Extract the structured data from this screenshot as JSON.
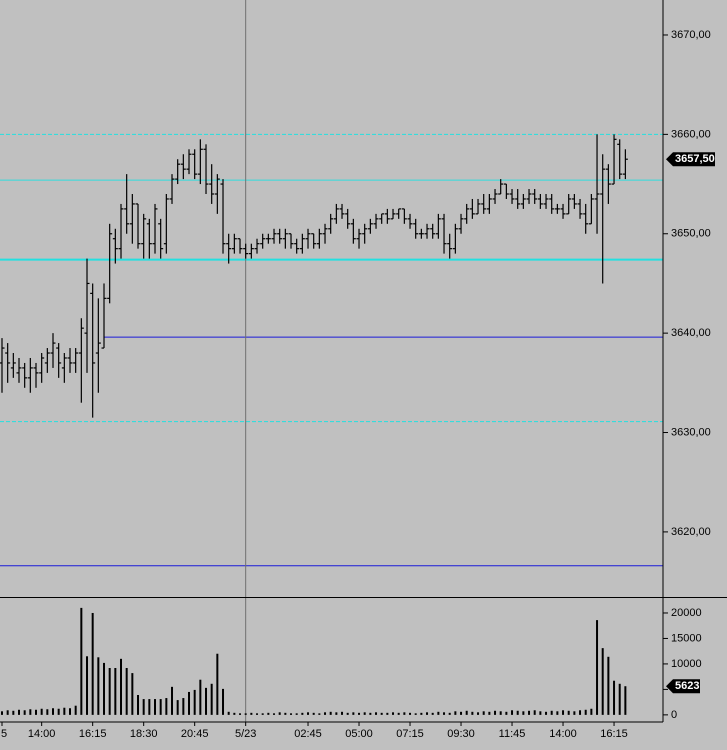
{
  "chart_data": [
    {
      "type": "ohlc",
      "categories": [
        "5",
        null,
        null,
        null,
        null,
        null,
        null,
        "14:00",
        null,
        null,
        null,
        null,
        null,
        null,
        null,
        null,
        "16:15",
        null,
        null,
        null,
        null,
        null,
        null,
        null,
        null,
        "18:30",
        null,
        null,
        null,
        null,
        null,
        null,
        null,
        null,
        "20:45",
        null,
        null,
        null,
        null,
        null,
        null,
        null,
        null,
        "5/23",
        null,
        null,
        null,
        null,
        null,
        null,
        null,
        null,
        null,
        null,
        "02:45",
        null,
        null,
        null,
        null,
        null,
        null,
        null,
        null,
        "05:00",
        null,
        null,
        null,
        null,
        null,
        null,
        null,
        null,
        "07:15",
        null,
        null,
        null,
        null,
        null,
        null,
        null,
        null,
        "09:30",
        null,
        null,
        null,
        null,
        null,
        null,
        null,
        null,
        "11:45",
        null,
        null,
        null,
        null,
        null,
        null,
        null,
        null,
        "14:00",
        null,
        null,
        null,
        null,
        null,
        null,
        null,
        null,
        "16:15",
        null,
        null
      ],
      "open": [
        3637,
        3638,
        3636.5,
        3636,
        3636.5,
        3635.5,
        3636.5,
        3636,
        3637,
        3638,
        3638.5,
        3636.5,
        3637.5,
        3637,
        3638,
        3640,
        3644,
        3638,
        3638.5,
        3643.5,
        3649.5,
        3648.5,
        3652.5,
        3651,
        3653,
        3649,
        3651,
        3649,
        3651,
        3649,
        3653.5,
        3655.5,
        3657,
        3656.5,
        3658,
        3656,
        3658.5,
        3655,
        3654,
        3655,
        3649,
        3648.5,
        3649.5,
        3648.5,
        3648,
        3648.5,
        3649,
        3649.5,
        3649.5,
        3650,
        3649.5,
        3650,
        3649,
        3648.5,
        3649.5,
        3650,
        3649,
        3650,
        3650.5,
        3651.5,
        3652.5,
        3652,
        3651,
        3649.5,
        3650,
        3650.5,
        3651,
        3651.5,
        3652,
        3651.5,
        3652,
        3652.5,
        3651.5,
        3651,
        3650,
        3650,
        3650.5,
        3650,
        3651.5,
        3649,
        3648.5,
        3650.5,
        3651.5,
        3652.5,
        3652,
        3653,
        3652.5,
        3653.5,
        3654,
        3655,
        3654,
        3653.5,
        3653,
        3653.5,
        3654,
        3653.5,
        3653,
        3653.5,
        3652.5,
        3652.5,
        3652,
        3653.5,
        3653,
        3652,
        3651,
        3653.5,
        3654,
        3656.5,
        3655,
        3659,
        3656
      ],
      "high": [
        3639.5,
        3639,
        3638,
        3637.5,
        3637,
        3637.5,
        3637,
        3638,
        3638.5,
        3640,
        3639,
        3638,
        3638.5,
        3638.5,
        3641.5,
        3647.5,
        3645,
        3643.5,
        3645,
        3651,
        3650.5,
        3653,
        3656,
        3654,
        3653,
        3652,
        3651.5,
        3653,
        3651.5,
        3654,
        3656,
        3657.5,
        3658,
        3658.5,
        3658.5,
        3659.5,
        3659,
        3657,
        3656,
        3655.5,
        3650,
        3650,
        3649.5,
        3649,
        3649,
        3649.5,
        3650,
        3650,
        3650.5,
        3650.5,
        3650.5,
        3650,
        3649.5,
        3650,
        3650.5,
        3650,
        3650.5,
        3651,
        3652,
        3653,
        3653,
        3652.5,
        3651.5,
        3650.5,
        3651,
        3651.5,
        3652,
        3652,
        3652.5,
        3652.5,
        3652.5,
        3652.5,
        3652,
        3651.5,
        3650.5,
        3651,
        3651,
        3652,
        3652,
        3650,
        3651,
        3652,
        3653,
        3653.5,
        3653.5,
        3654,
        3654,
        3654.5,
        3655.5,
        3655,
        3654.5,
        3654.5,
        3654,
        3654.5,
        3654.5,
        3654,
        3654,
        3654,
        3653,
        3653,
        3654,
        3654,
        3653.5,
        3653,
        3654,
        3660,
        3658,
        3657,
        3660,
        3659.5,
        3658.5
      ],
      "low": [
        3634,
        3635,
        3635.5,
        3635,
        3634.5,
        3634,
        3634.5,
        3635,
        3636,
        3636.5,
        3635.5,
        3635,
        3636,
        3636,
        3633,
        3636,
        3631.5,
        3634,
        3638.5,
        3643,
        3647,
        3647.5,
        3650,
        3649,
        3648.5,
        3647.5,
        3647.5,
        3648,
        3647.5,
        3648,
        3653,
        3655,
        3655.5,
        3656,
        3655.5,
        3655,
        3654,
        3653,
        3652,
        3648,
        3647,
        3648,
        3648,
        3647.5,
        3647.5,
        3648,
        3648.5,
        3649,
        3649,
        3649,
        3648.5,
        3648.5,
        3648,
        3648,
        3648.5,
        3648.5,
        3648.5,
        3649,
        3650,
        3651,
        3651.5,
        3650.5,
        3649,
        3648.5,
        3649,
        3650,
        3650.5,
        3651,
        3651,
        3651.5,
        3651.5,
        3651,
        3650.5,
        3649.5,
        3649.5,
        3649.5,
        3649.5,
        3649.5,
        3648,
        3647.5,
        3648,
        3650,
        3651,
        3651.5,
        3652,
        3652,
        3652,
        3653,
        3654,
        3653.5,
        3653,
        3652.5,
        3652.5,
        3653,
        3653,
        3652.5,
        3652.5,
        3652,
        3652,
        3651.5,
        3652,
        3652.5,
        3651.5,
        3650,
        3651,
        3650,
        3645,
        3653,
        3655,
        3655.5,
        3655.5
      ],
      "close": [
        3638.5,
        3637,
        3637,
        3636.5,
        3635.5,
        3636.5,
        3636,
        3637.5,
        3638,
        3639,
        3637,
        3637.5,
        3637,
        3638,
        3640.5,
        3645,
        3637,
        3639,
        3643.5,
        3650,
        3648.5,
        3652.5,
        3651,
        3653,
        3649,
        3651.5,
        3649,
        3652.5,
        3648.5,
        3653.5,
        3655.5,
        3657,
        3656.5,
        3658,
        3656,
        3658.5,
        3655,
        3654,
        3655.5,
        3649,
        3648.5,
        3649.5,
        3648.5,
        3648,
        3648.5,
        3649,
        3649.5,
        3649.5,
        3650,
        3649.5,
        3650,
        3649,
        3648.5,
        3649.5,
        3650,
        3649,
        3650,
        3650.5,
        3651.5,
        3652.5,
        3652,
        3651,
        3649.5,
        3650,
        3650.5,
        3651,
        3651.5,
        3652,
        3651.5,
        3652,
        3652.5,
        3651.5,
        3651,
        3650,
        3650,
        3650.5,
        3650,
        3651.5,
        3649,
        3648.5,
        3650.5,
        3651.5,
        3652.5,
        3652,
        3653,
        3652.5,
        3653.5,
        3654,
        3655,
        3654,
        3653.5,
        3653,
        3653.5,
        3654,
        3653.5,
        3653,
        3653.5,
        3652.5,
        3652.5,
        3652,
        3653.5,
        3653,
        3652,
        3651,
        3653.5,
        3654,
        3656.5,
        3655,
        3659.5,
        3656,
        3657.5
      ],
      "color": "#000000",
      "ylim": [
        3613.45,
        3673.52
      ],
      "yticks": [
        {
          "value": 3620,
          "label": "3620,00"
        },
        {
          "value": 3630,
          "label": "3630,00"
        },
        {
          "value": 3640,
          "label": "3640,00"
        },
        {
          "value": 3650,
          "label": "3650,00"
        },
        {
          "value": 3660,
          "label": "3660,00"
        },
        {
          "value": 3670,
          "label": "3670,00"
        }
      ],
      "levels": [
        {
          "value": 3660,
          "color": "#22e0e0",
          "dash": true
        },
        {
          "value": 3655.4,
          "color": "#30dcdc"
        },
        {
          "value": 3647.4,
          "color": "#22e0e0",
          "width": 2
        },
        {
          "value": 3631.1,
          "color": "#22e0e0",
          "dash": true
        },
        {
          "value": 3639.6,
          "color": "#1a1ad8",
          "start": 18
        },
        {
          "value": 3616.6,
          "color": "#1a1ad8"
        }
      ],
      "divider_index": 43,
      "last_price": {
        "value": 3657.5,
        "label": "3657,50"
      },
      "grid": false
    },
    {
      "type": "bar",
      "values": [
        700,
        900,
        800,
        1000,
        900,
        1100,
        1000,
        1200,
        1100,
        1300,
        1200,
        1400,
        1300,
        1800,
        21000,
        11500,
        20000,
        11300,
        10200,
        9200,
        9200,
        11000,
        9200,
        8200,
        3900,
        3100,
        3100,
        3100,
        3100,
        3300,
        5500,
        2900,
        3300,
        4500,
        4900,
        6900,
        5300,
        6100,
        12000,
        5100,
        600,
        400,
        300,
        300,
        400,
        300,
        300,
        400,
        300,
        500,
        400,
        300,
        300,
        400,
        500,
        400,
        300,
        500,
        600,
        500,
        600,
        400,
        500,
        400,
        500,
        400,
        500,
        400,
        400,
        500,
        400,
        500,
        400,
        300,
        400,
        500,
        400,
        600,
        500,
        400,
        700,
        600,
        800,
        600,
        500,
        700,
        600,
        800,
        700,
        600,
        900,
        800,
        700,
        800,
        900,
        700,
        600,
        800,
        700,
        900,
        800,
        700,
        900,
        1000,
        1200,
        18600,
        13100,
        11400,
        6700,
        6100,
        5623
      ],
      "color": "#000000",
      "ylim": [
        -1400,
        22940
      ],
      "yticks": [
        0,
        5000,
        10000,
        15000,
        20000
      ],
      "last_value": 5623
    }
  ]
}
